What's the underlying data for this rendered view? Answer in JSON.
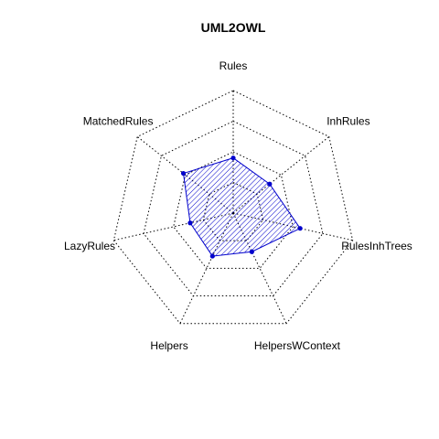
{
  "chart_data": {
    "type": "radar",
    "title": "UML2OWL",
    "axes": [
      "Rules",
      "InhRules",
      "RulesInhTrees",
      "HelpersWContext",
      "Helpers",
      "LazyRules",
      "MatchedRules"
    ],
    "ring_count": 4,
    "grid": true,
    "legend": "none",
    "colors": {
      "series": "#0000cc",
      "fill": "#0000cc",
      "grid": "#000000"
    },
    "fill_pattern": "diagonal-hatch",
    "series": [
      {
        "values": [
          0.45,
          0.38,
          0.56,
          0.35,
          0.39,
          0.36,
          0.52
        ]
      }
    ]
  }
}
